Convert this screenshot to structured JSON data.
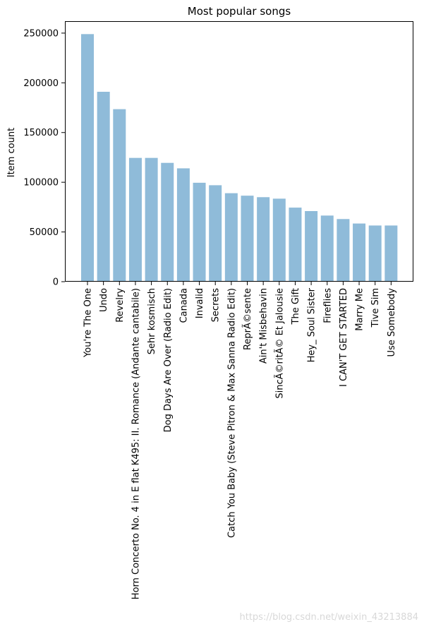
{
  "chart_data": {
    "type": "bar",
    "title": "Most popular songs",
    "xlabel": "",
    "ylabel": "Item count",
    "ylim": [
      0,
      262000
    ],
    "yticks": [
      0,
      50000,
      100000,
      150000,
      200000,
      250000
    ],
    "ytick_labels": [
      "0",
      "50000",
      "100000",
      "150000",
      "200000",
      "250000"
    ],
    "grid": false,
    "bar_color": "#8fbbd9",
    "categories": [
      "You're The One",
      "Undo",
      "Revelry",
      "Horn Concerto No. 4 in E flat K495: II. Romance (Andante cantabile)",
      "Sehr kosmisch",
      "Dog Days Are Over (Radio Edit)",
      "Canada",
      "Invalid",
      "Secrets",
      "Catch You Baby (Steve Pitron & Max Sanna Radio Edit)",
      "ReprÃ©sente",
      "Ain't Misbehavin",
      "SincÃ©ritÃ© Et Jalousie",
      "The Gift",
      "Hey_ Soul Sister",
      "Fireflies",
      "I CAN'T GET STARTED",
      "Marry Me",
      "Tive Sim",
      "Use Somebody"
    ],
    "values": [
      249000,
      191000,
      173500,
      124500,
      124500,
      119500,
      114000,
      99500,
      97000,
      89000,
      86500,
      85000,
      83500,
      74500,
      71000,
      66500,
      63000,
      58500,
      56500,
      56500
    ]
  },
  "watermark": {
    "text": "https://blog.csdn.net/weixin_43213884"
  }
}
